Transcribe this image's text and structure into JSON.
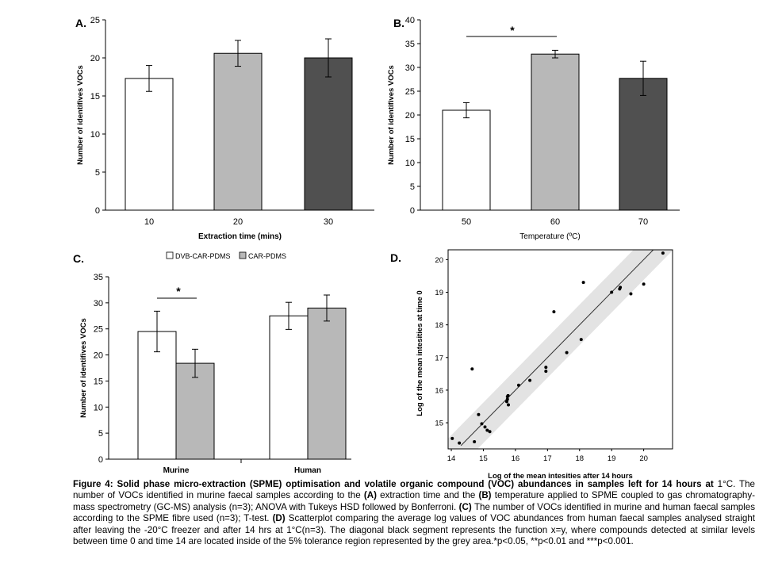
{
  "chart_data": [
    {
      "type": "bar",
      "panel": "A.",
      "categories": [
        "10",
        "20",
        "30"
      ],
      "values": [
        17.3,
        20.6,
        20.0
      ],
      "errors": [
        1.7,
        1.7,
        2.5
      ],
      "colors": [
        "#ffffff",
        "#b8b8b8",
        "#505050"
      ],
      "ylabel": "Number of identifives VOCs",
      "xlabel": "Extraction time (mins)",
      "ylim": [
        0,
        25
      ],
      "yticks": [
        "0",
        "5",
        "10",
        "15",
        "20",
        "25"
      ],
      "annotations": []
    },
    {
      "type": "bar",
      "panel": "B.",
      "categories": [
        "50",
        "60",
        "70"
      ],
      "values": [
        21.0,
        32.8,
        27.7
      ],
      "errors": [
        1.6,
        0.8,
        3.6
      ],
      "colors": [
        "#ffffff",
        "#b8b8b8",
        "#505050"
      ],
      "ylabel": "Number of identifives VOCs",
      "xlabel": "Temperature (ºC)",
      "ylim": [
        0,
        40
      ],
      "yticks": [
        "0",
        "5",
        "10",
        "15",
        "20",
        "25",
        "30",
        "35",
        "40"
      ],
      "annotations": [
        {
          "text": "*",
          "from": "50",
          "to": "60"
        }
      ]
    },
    {
      "type": "bar",
      "panel": "C.",
      "categories": [
        "Murine",
        "Human"
      ],
      "series": [
        {
          "name": "DVB-CAR-PDMS",
          "values": [
            24.5,
            27.5
          ],
          "errors": [
            3.9,
            2.6
          ],
          "color": "#ffffff"
        },
        {
          "name": "CAR-PDMS",
          "values": [
            18.4,
            29.0
          ],
          "errors": [
            2.7,
            2.5
          ],
          "color": "#b8b8b8"
        }
      ],
      "ylabel": "Number of identifives VOCs",
      "xlabel": "",
      "ylim": [
        0,
        35
      ],
      "yticks": [
        "0",
        "5",
        "10",
        "15",
        "20",
        "25",
        "30",
        "35"
      ],
      "legend": "top",
      "annotations": [
        {
          "text": "*",
          "group": "Murine"
        }
      ]
    },
    {
      "type": "scatter",
      "panel": "D.",
      "xlabel": "Log of the mean intesities after 14 hours",
      "ylabel": "Log of the mean intesities at time 0",
      "xlim": [
        13.9,
        20.9
      ],
      "ylim": [
        14.2,
        20.3
      ],
      "xticks": [
        "14",
        "15",
        "16",
        "17",
        "18",
        "19",
        "20"
      ],
      "yticks": [
        "15",
        "16",
        "17",
        "18",
        "19",
        "20"
      ],
      "identity_line": true,
      "tolerance_band": 0.62,
      "points": [
        [
          14.03,
          14.52
        ],
        [
          14.25,
          14.38
        ],
        [
          14.65,
          16.65
        ],
        [
          14.72,
          14.42
        ],
        [
          14.85,
          15.25
        ],
        [
          14.95,
          14.97
        ],
        [
          15.05,
          14.87
        ],
        [
          15.12,
          14.77
        ],
        [
          15.2,
          14.73
        ],
        [
          15.75,
          15.8
        ],
        [
          15.75,
          15.72
        ],
        [
          15.77,
          15.83
        ],
        [
          15.73,
          15.65
        ],
        [
          15.78,
          15.55
        ],
        [
          16.1,
          16.15
        ],
        [
          16.45,
          16.3
        ],
        [
          16.95,
          16.7
        ],
        [
          16.95,
          16.58
        ],
        [
          17.2,
          18.4
        ],
        [
          17.6,
          17.15
        ],
        [
          18.05,
          17.55
        ],
        [
          18.12,
          19.3
        ],
        [
          19.0,
          19.0
        ],
        [
          19.25,
          19.1
        ],
        [
          19.27,
          19.15
        ],
        [
          19.6,
          18.95
        ],
        [
          20.0,
          19.25
        ],
        [
          20.6,
          20.2
        ]
      ]
    }
  ],
  "caption": {
    "figure_label": "Figure 4:",
    "title": "Solid phase micro-extraction (SPME) optimisation and volatile organic compound (VOC) abundances in samples left for 14 hours at",
    "p1": " 1°C. The number of VOCs identified in murine faecal samples according to the ",
    "a": "(A)",
    "p2": " extraction time and the ",
    "b": "(B)",
    "p3": " temperature applied to SPME coupled to gas chromatography- mass spectrometry (GC-MS) analysis (n=3); ANOVA with Tukeys HSD followed by Bonferroni. ",
    "c": "(C)",
    "p4": " The number of VOCs identified in murine and human faecal samples according to the SPME fibre used (n=3); T-test. ",
    "d": "(D)",
    "p5": " Scatterplot comparing the average log values of VOC abundances from human faecal samples analysed straight after leaving the -20°C freezer and after 14 hrs at 1°C(n=3). The diagonal black segment represents the function x=y, where compounds detected at similar levels between time 0 and time 14 are located inside of the 5% tolerance region represented by the grey area.*p<0.05, **p<0.01 and ***p<0.001."
  }
}
